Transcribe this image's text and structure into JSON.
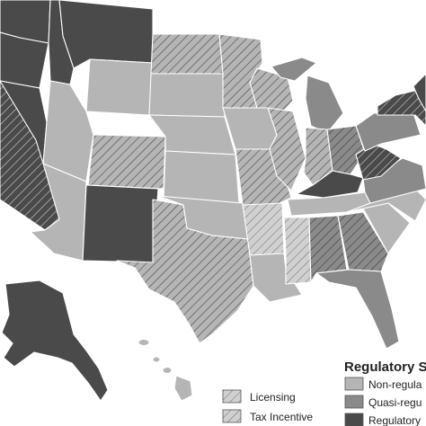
{
  "colors": {
    "non_regulated": "#b5b5b5",
    "quasi_regulated": "#8a8a8a",
    "regulatory": "#4a4a4a",
    "licensing_fill": "#d0d0d0",
    "tax_incentive_fill": "#b5b5b5",
    "hatch_stroke": "#555555",
    "background": "#ffffff"
  },
  "legend": {
    "approach": {
      "title": "Regulatory S",
      "items": [
        {
          "label": "Licensing"
        },
        {
          "label": "Tax Incentive"
        }
      ]
    },
    "system": {
      "items": [
        {
          "label": "Non-regula"
        },
        {
          "label": "Quasi-regu"
        },
        {
          "label": "Regulatory"
        }
      ]
    }
  }
}
